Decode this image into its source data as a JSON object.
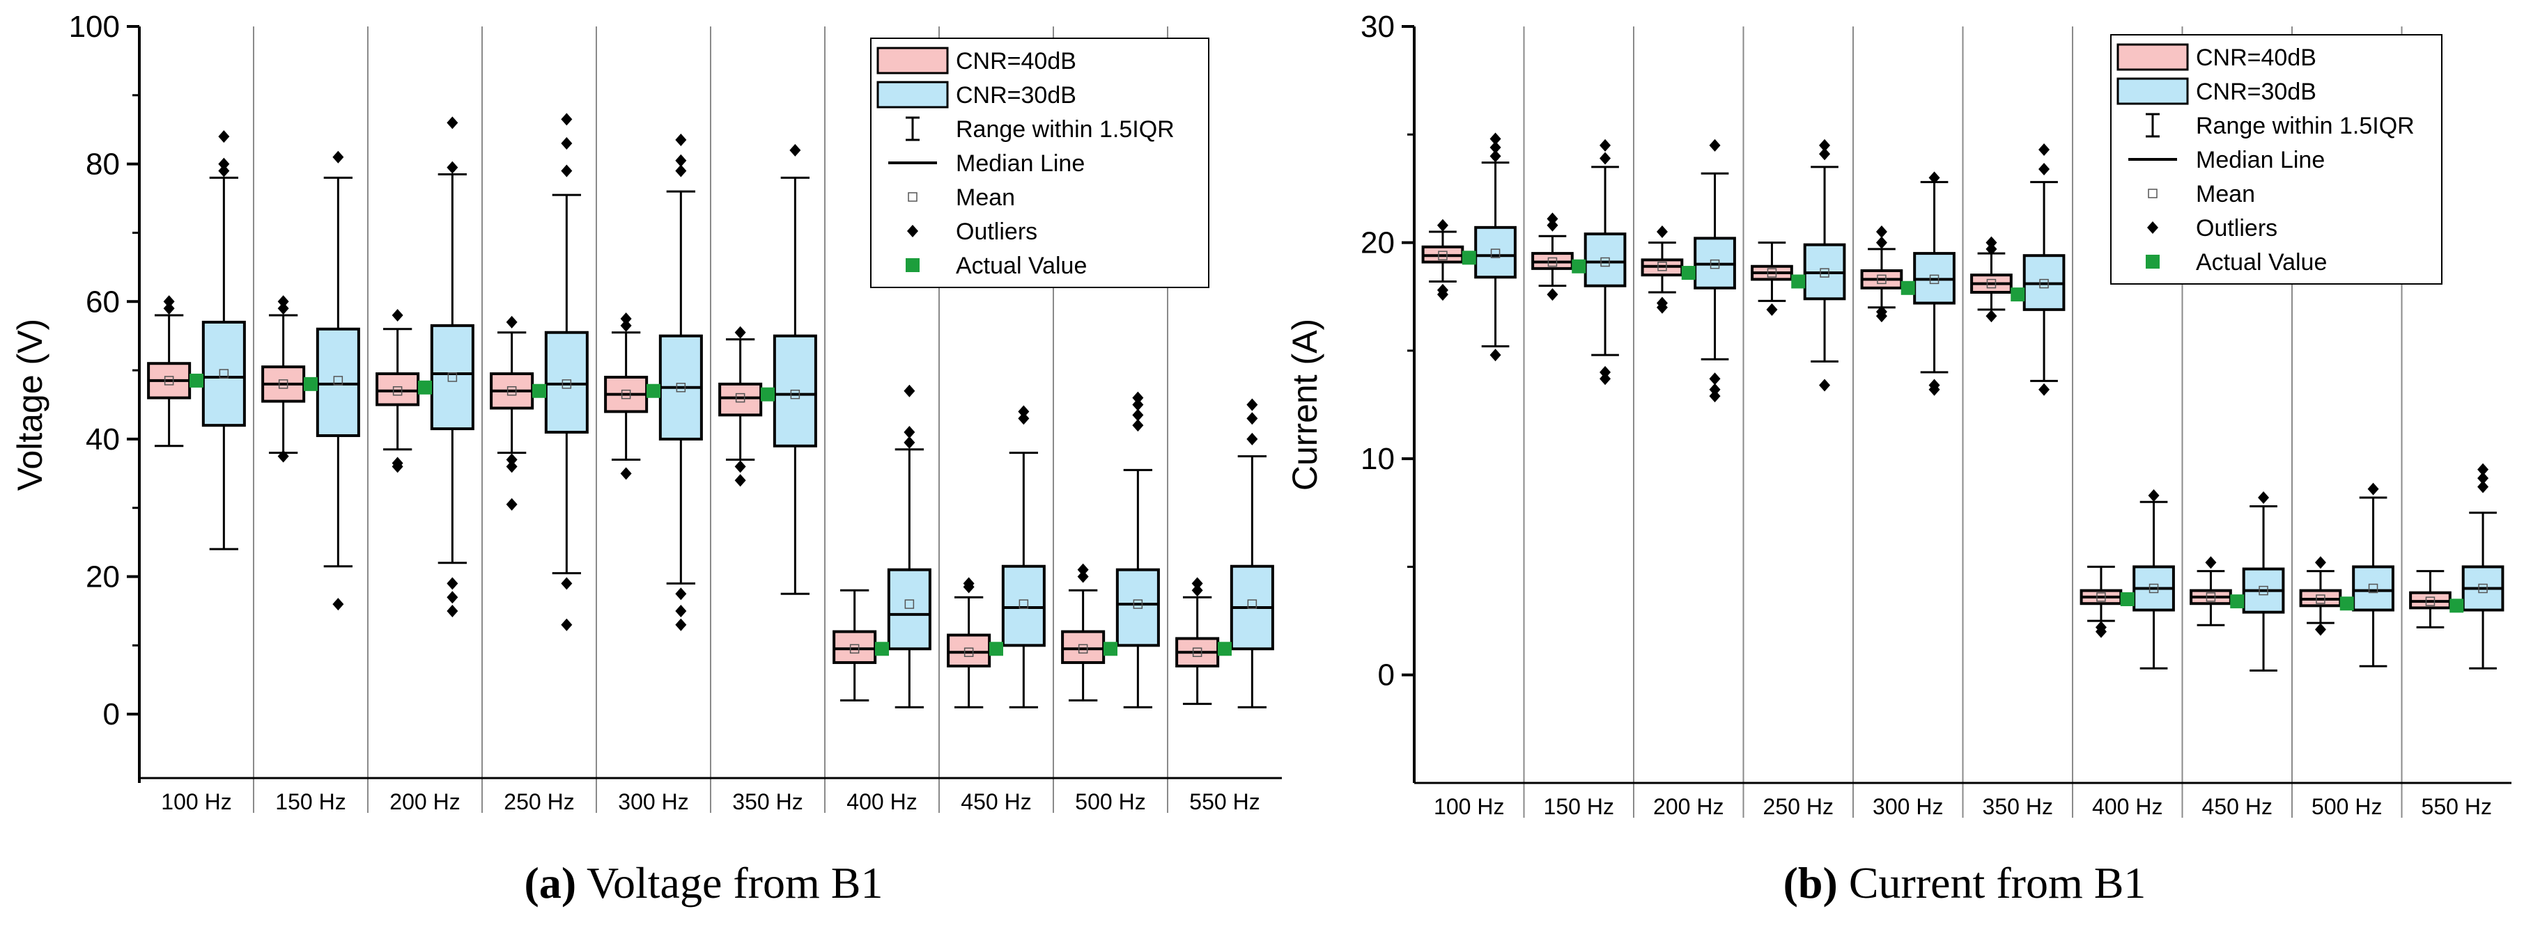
{
  "chart_data": [
    {
      "type": "boxplot",
      "id": "voltage",
      "caption_label": "(a)",
      "caption_text": "Voltage from B1",
      "ylabel": "Voltage (V)",
      "xlabel": "",
      "ylim": [
        -10,
        100
      ],
      "yticks": [
        0,
        20,
        40,
        60,
        80,
        100
      ],
      "categories": [
        "100 Hz",
        "150 Hz",
        "200 Hz",
        "250 Hz",
        "300 Hz",
        "350 Hz",
        "400 Hz",
        "450 Hz",
        "500 Hz",
        "550 Hz"
      ],
      "legend": {
        "position": "top-right",
        "entries": [
          "CNR=40dB",
          "CNR=30dB",
          "Range within 1.5IQR",
          "Median Line",
          "Mean",
          "Outliers",
          "Actual Value"
        ]
      },
      "colors": {
        "cnr40": "#f8c4c4",
        "cnr30": "#bde6f7",
        "actual": "#1c9e3c"
      },
      "series": [
        {
          "name": "CNR=40dB",
          "boxes": [
            {
              "q1": 46,
              "median": 48.5,
              "q3": 51,
              "whisker_low": 39,
              "whisker_high": 58,
              "mean": 48.5,
              "outliers": [
                59,
                60
              ]
            },
            {
              "q1": 45.5,
              "median": 48,
              "q3": 50.5,
              "whisker_low": 38,
              "whisker_high": 58,
              "mean": 48,
              "outliers": [
                37.5,
                59,
                60
              ]
            },
            {
              "q1": 45,
              "median": 47,
              "q3": 49.5,
              "whisker_low": 38.5,
              "whisker_high": 56,
              "mean": 47,
              "outliers": [
                36.5,
                36,
                58
              ]
            },
            {
              "q1": 44.5,
              "median": 47,
              "q3": 49.5,
              "whisker_low": 38,
              "whisker_high": 55.5,
              "mean": 47,
              "outliers": [
                37,
                36,
                30.5,
                57
              ]
            },
            {
              "q1": 44,
              "median": 46.5,
              "q3": 49,
              "whisker_low": 37,
              "whisker_high": 55.5,
              "mean": 46.5,
              "outliers": [
                35,
                56.5,
                57.5
              ]
            },
            {
              "q1": 43.5,
              "median": 46,
              "q3": 48,
              "whisker_low": 37,
              "whisker_high": 54.5,
              "mean": 46,
              "outliers": [
                36,
                34,
                55.5
              ]
            },
            {
              "q1": 7.5,
              "median": 9.5,
              "q3": 12,
              "whisker_low": 2,
              "whisker_high": 18,
              "mean": 9.5,
              "outliers": []
            },
            {
              "q1": 7,
              "median": 9,
              "q3": 11.5,
              "whisker_low": 1,
              "whisker_high": 17,
              "mean": 9,
              "outliers": [
                19,
                18.5
              ]
            },
            {
              "q1": 7.5,
              "median": 9.5,
              "q3": 12,
              "whisker_low": 2,
              "whisker_high": 18,
              "mean": 9.5,
              "outliers": [
                20,
                21
              ]
            },
            {
              "q1": 7,
              "median": 9,
              "q3": 11,
              "whisker_low": 1.5,
              "whisker_high": 17,
              "mean": 9,
              "outliers": [
                18,
                19
              ]
            }
          ]
        },
        {
          "name": "CNR=30dB",
          "boxes": [
            {
              "q1": 42,
              "median": 49,
              "q3": 57,
              "whisker_low": 24,
              "whisker_high": 78,
              "mean": 49.5,
              "outliers": [
                79,
                80,
                84
              ]
            },
            {
              "q1": 40.5,
              "median": 48,
              "q3": 56,
              "whisker_low": 21.5,
              "whisker_high": 78,
              "mean": 48.5,
              "outliers": [
                16,
                81
              ]
            },
            {
              "q1": 41.5,
              "median": 49.5,
              "q3": 56.5,
              "whisker_low": 22,
              "whisker_high": 78.5,
              "mean": 49,
              "outliers": [
                19,
                17,
                15,
                79.5,
                86
              ]
            },
            {
              "q1": 41,
              "median": 48,
              "q3": 55.5,
              "whisker_low": 20.5,
              "whisker_high": 75.5,
              "mean": 48,
              "outliers": [
                19,
                13,
                79,
                83,
                86.5
              ]
            },
            {
              "q1": 40,
              "median": 47.5,
              "q3": 55,
              "whisker_low": 19,
              "whisker_high": 76,
              "mean": 47.5,
              "outliers": [
                17.5,
                15,
                13,
                79,
                80.5,
                83.5
              ]
            },
            {
              "q1": 39,
              "median": 46.5,
              "q3": 55,
              "whisker_low": 17.5,
              "whisker_high": 78,
              "mean": 46.5,
              "outliers": [
                82
              ]
            },
            {
              "q1": 9.5,
              "median": 14.5,
              "q3": 21,
              "whisker_low": 1,
              "whisker_high": 38.5,
              "mean": 16,
              "outliers": [
                39.5,
                41,
                47
              ]
            },
            {
              "q1": 10,
              "median": 15.5,
              "q3": 21.5,
              "whisker_low": 1,
              "whisker_high": 38,
              "mean": 16,
              "outliers": [
                43,
                44
              ]
            },
            {
              "q1": 10,
              "median": 16,
              "q3": 21,
              "whisker_low": 1,
              "whisker_high": 35.5,
              "mean": 16,
              "outliers": [
                42,
                43.5,
                45,
                46
              ]
            },
            {
              "q1": 9.5,
              "median": 15.5,
              "q3": 21.5,
              "whisker_low": 1,
              "whisker_high": 37.5,
              "mean": 16,
              "outliers": [
                40,
                43,
                45
              ]
            }
          ]
        }
      ],
      "actual_values": [
        48.5,
        48,
        47.5,
        47,
        47,
        46.5,
        9.5,
        9.5,
        9.5,
        9.5
      ]
    },
    {
      "type": "boxplot",
      "id": "current",
      "caption_label": "(b)",
      "caption_text": "Current from B1",
      "ylabel": "Current (A)",
      "xlabel": "",
      "ylim": [
        -5,
        30
      ],
      "yticks": [
        0,
        10,
        20,
        30
      ],
      "categories": [
        "100 Hz",
        "150 Hz",
        "200 Hz",
        "250 Hz",
        "300 Hz",
        "350 Hz",
        "400 Hz",
        "450 Hz",
        "500 Hz",
        "550 Hz"
      ],
      "legend": {
        "position": "top-right",
        "entries": [
          "CNR=40dB",
          "CNR=30dB",
          "Range within 1.5IQR",
          "Median Line",
          "Mean",
          "Outliers",
          "Actual Value"
        ]
      },
      "colors": {
        "cnr40": "#f8c4c4",
        "cnr30": "#bde6f7",
        "actual": "#1c9e3c"
      },
      "series": [
        {
          "name": "CNR=40dB",
          "boxes": [
            {
              "q1": 19.1,
              "median": 19.4,
              "q3": 19.8,
              "whisker_low": 18.2,
              "whisker_high": 20.5,
              "mean": 19.4,
              "outliers": [
                17.8,
                17.6,
                20.8
              ]
            },
            {
              "q1": 18.8,
              "median": 19.1,
              "q3": 19.5,
              "whisker_low": 18,
              "whisker_high": 20.3,
              "mean": 19.1,
              "outliers": [
                17.6,
                20.8,
                21.1
              ]
            },
            {
              "q1": 18.5,
              "median": 18.9,
              "q3": 19.2,
              "whisker_low": 17.7,
              "whisker_high": 20,
              "mean": 18.9,
              "outliers": [
                17.2,
                17,
                20.5
              ]
            },
            {
              "q1": 18.3,
              "median": 18.6,
              "q3": 18.9,
              "whisker_low": 17.3,
              "whisker_high": 20,
              "mean": 18.6,
              "outliers": [
                16.9
              ]
            },
            {
              "q1": 17.9,
              "median": 18.3,
              "q3": 18.7,
              "whisker_low": 17,
              "whisker_high": 19.7,
              "mean": 18.3,
              "outliers": [
                16.8,
                16.6,
                20,
                20.5
              ]
            },
            {
              "q1": 17.7,
              "median": 18.1,
              "q3": 18.5,
              "whisker_low": 16.9,
              "whisker_high": 19.5,
              "mean": 18.1,
              "outliers": [
                16.6,
                19.7,
                20
              ]
            },
            {
              "q1": 3.3,
              "median": 3.6,
              "q3": 3.9,
              "whisker_low": 2.5,
              "whisker_high": 5,
              "mean": 3.6,
              "outliers": [
                2.2,
                2
              ]
            },
            {
              "q1": 3.3,
              "median": 3.6,
              "q3": 3.9,
              "whisker_low": 2.3,
              "whisker_high": 4.8,
              "mean": 3.6,
              "outliers": [
                5.2
              ]
            },
            {
              "q1": 3.2,
              "median": 3.5,
              "q3": 3.9,
              "whisker_low": 2.4,
              "whisker_high": 4.8,
              "mean": 3.5,
              "outliers": [
                2.1,
                5.2
              ]
            },
            {
              "q1": 3.1,
              "median": 3.4,
              "q3": 3.8,
              "whisker_low": 2.2,
              "whisker_high": 4.8,
              "mean": 3.4,
              "outliers": []
            }
          ]
        },
        {
          "name": "CNR=30dB",
          "boxes": [
            {
              "q1": 18.4,
              "median": 19.4,
              "q3": 20.7,
              "whisker_low": 15.2,
              "whisker_high": 23.7,
              "mean": 19.5,
              "outliers": [
                14.8,
                24,
                24.4,
                24.8
              ]
            },
            {
              "q1": 18,
              "median": 19.1,
              "q3": 20.4,
              "whisker_low": 14.8,
              "whisker_high": 23.5,
              "mean": 19.1,
              "outliers": [
                14,
                13.7,
                23.9,
                24.5
              ]
            },
            {
              "q1": 17.9,
              "median": 19,
              "q3": 20.2,
              "whisker_low": 14.6,
              "whisker_high": 23.2,
              "mean": 19,
              "outliers": [
                13.7,
                13.2,
                12.9,
                24.5
              ]
            },
            {
              "q1": 17.4,
              "median": 18.6,
              "q3": 19.9,
              "whisker_low": 14.5,
              "whisker_high": 23.5,
              "mean": 18.6,
              "outliers": [
                13.4,
                24.1,
                24.5
              ]
            },
            {
              "q1": 17.2,
              "median": 18.3,
              "q3": 19.5,
              "whisker_low": 14,
              "whisker_high": 22.8,
              "mean": 18.3,
              "outliers": [
                13.4,
                13.2,
                23
              ]
            },
            {
              "q1": 16.9,
              "median": 18.1,
              "q3": 19.4,
              "whisker_low": 13.6,
              "whisker_high": 22.8,
              "mean": 18.1,
              "outliers": [
                13.2,
                23.4,
                24.3
              ]
            },
            {
              "q1": 3,
              "median": 4,
              "q3": 5,
              "whisker_low": 0.3,
              "whisker_high": 8,
              "mean": 4,
              "outliers": [
                8.3
              ]
            },
            {
              "q1": 2.9,
              "median": 3.9,
              "q3": 4.9,
              "whisker_low": 0.2,
              "whisker_high": 7.8,
              "mean": 3.9,
              "outliers": [
                8.2
              ]
            },
            {
              "q1": 3,
              "median": 3.9,
              "q3": 5,
              "whisker_low": 0.4,
              "whisker_high": 8.2,
              "mean": 4,
              "outliers": [
                8.6
              ]
            },
            {
              "q1": 3,
              "median": 4,
              "q3": 5,
              "whisker_low": 0.3,
              "whisker_high": 7.5,
              "mean": 4,
              "outliers": [
                8.7,
                9.1,
                9.5
              ]
            }
          ]
        }
      ],
      "actual_values": [
        19.3,
        18.9,
        18.6,
        18.2,
        17.9,
        17.6,
        3.5,
        3.4,
        3.3,
        3.2
      ]
    }
  ]
}
